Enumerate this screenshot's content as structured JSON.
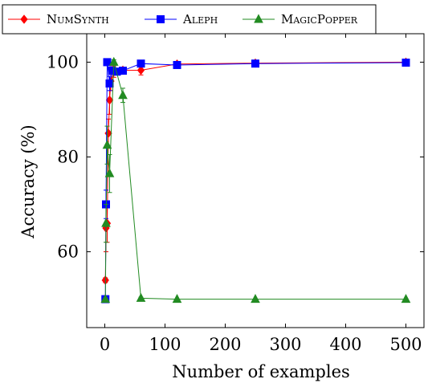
{
  "chart_data": {
    "type": "line",
    "xlabel": "Number of examples",
    "ylabel": "Accuracy (%)",
    "xlim": [
      -30,
      530
    ],
    "ylim": [
      44,
      106
    ],
    "xticks": [
      0,
      100,
      200,
      300,
      400,
      500
    ],
    "yticks": [
      60,
      80,
      100
    ],
    "grid": false,
    "legend_position": "top-left",
    "series": [
      {
        "name": "NumSynth",
        "color": "#ff0000",
        "marker": "diamond",
        "points": [
          [
            1,
            54
          ],
          [
            2,
            65
          ],
          [
            4,
            66
          ],
          [
            6,
            85
          ],
          [
            8,
            92
          ],
          [
            10,
            96
          ],
          [
            15,
            98
          ],
          [
            30,
            98.3
          ],
          [
            60,
            98.3
          ],
          [
            120,
            99.6
          ],
          [
            250,
            99.8
          ],
          [
            500,
            100
          ]
        ],
        "errors": [
          0.5,
          5,
          4,
          3,
          3,
          2,
          1.2,
          0.5,
          1,
          0.4,
          0.3,
          0.2
        ]
      },
      {
        "name": "Aleph",
        "color": "#0000ff",
        "marker": "square",
        "points": [
          [
            1,
            50
          ],
          [
            2,
            70
          ],
          [
            4,
            100
          ],
          [
            8,
            95.5
          ],
          [
            12,
            98.2
          ],
          [
            20,
            98
          ],
          [
            30,
            98.2
          ],
          [
            60,
            99.7
          ],
          [
            120,
            99.4
          ],
          [
            250,
            99.7
          ],
          [
            500,
            99.9
          ]
        ],
        "errors": [
          0,
          3,
          0,
          1.5,
          0.8,
          0.5,
          0.5,
          0.3,
          0.3,
          0.2,
          0.1
        ]
      },
      {
        "name": "MagicPopper",
        "color": "#228b22",
        "marker": "triangle",
        "points": [
          [
            1,
            50
          ],
          [
            2,
            66
          ],
          [
            4,
            82.5
          ],
          [
            8,
            76.5
          ],
          [
            15,
            100
          ],
          [
            30,
            93
          ],
          [
            60,
            50.2
          ],
          [
            120,
            50
          ],
          [
            250,
            50
          ],
          [
            500,
            50
          ]
        ],
        "errors": [
          0,
          4,
          4,
          4,
          0.5,
          1.5,
          0.2,
          0,
          0,
          0
        ]
      }
    ]
  }
}
